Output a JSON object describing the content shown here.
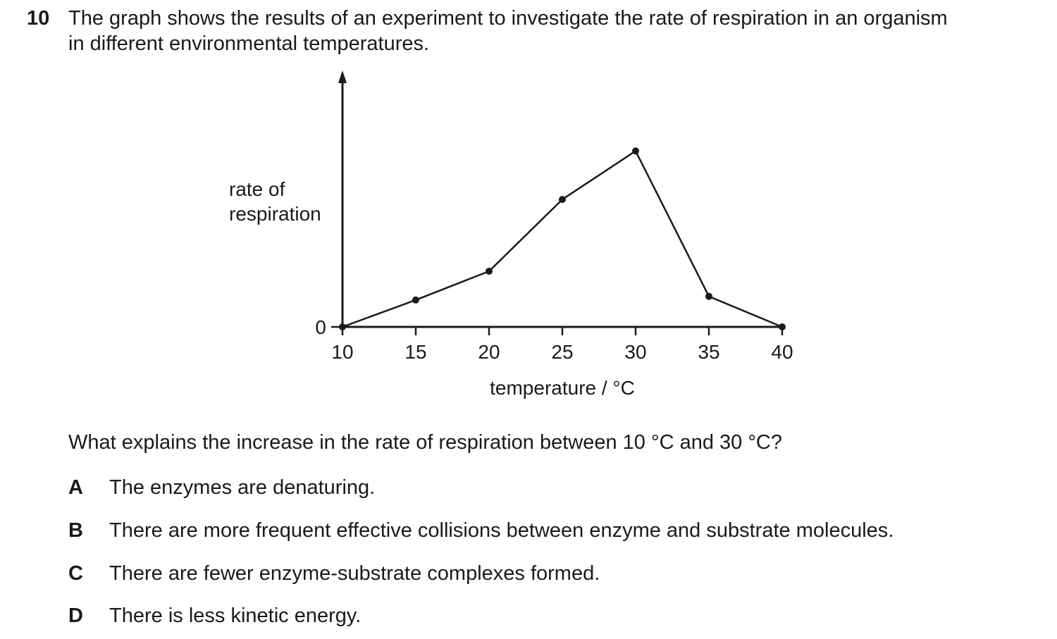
{
  "question": {
    "number": "10",
    "stem_line1": "The graph shows the results of an experiment to investigate the rate of respiration in an organism",
    "stem_line2": "in different environmental temperatures.",
    "prompt": "What explains the increase in the rate of respiration between 10 °C and 30 °C?",
    "options": [
      {
        "letter": "A",
        "text": "The enzymes are denaturing."
      },
      {
        "letter": "B",
        "text": "There are more frequent effective collisions between enzyme and substrate molecules."
      },
      {
        "letter": "C",
        "text": "There are fewer enzyme-substrate complexes formed."
      },
      {
        "letter": "D",
        "text": "There is less kinetic energy."
      }
    ]
  },
  "chart_data": {
    "type": "line",
    "xlabel": "temperature / °C",
    "ylabel_lines": [
      "rate of",
      "respiration"
    ],
    "x": [
      10,
      15,
      20,
      25,
      30,
      35,
      40
    ],
    "y": [
      0,
      1.5,
      3.1,
      7.1,
      9.8,
      1.7,
      0
    ],
    "x_ticks": [
      "10",
      "15",
      "20",
      "25",
      "30",
      "35",
      "40"
    ],
    "y_ticks": [
      "0"
    ],
    "xlim": [
      10,
      40
    ],
    "ylim": [
      0,
      13.5
    ],
    "grid": false,
    "legend": "none"
  }
}
